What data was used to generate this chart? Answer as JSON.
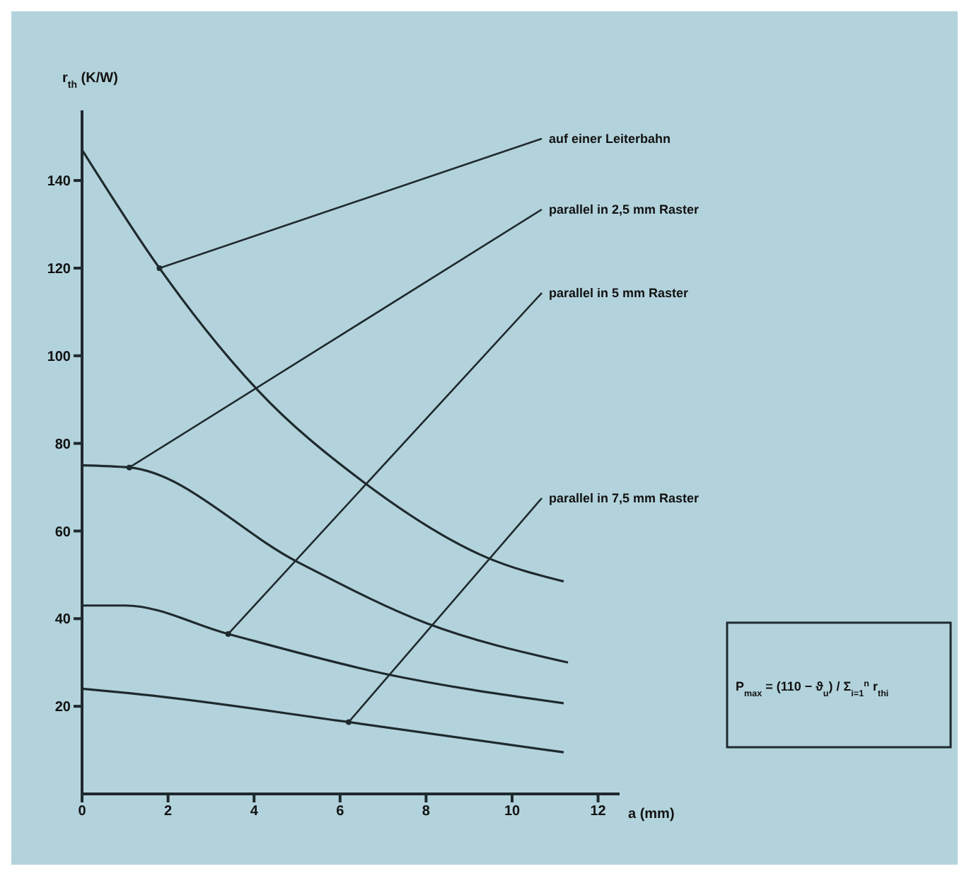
{
  "chart_data": {
    "type": "line",
    "ylabel": "r$_{th}$ (K/W)",
    "xlabel": "a (mm)",
    "xlim": [
      0,
      12.5
    ],
    "xticks": [
      0,
      2,
      4,
      6,
      8,
      10,
      12
    ],
    "ylim": [
      0,
      156
    ],
    "yticks": [
      20,
      40,
      60,
      80,
      100,
      120,
      140
    ],
    "marker": "none",
    "line_style": "solid",
    "series": [
      {
        "color": "#1f2a2e",
        "x": [
          0,
          1.8,
          4.1,
          6.5,
          9.4,
          11.2
        ],
        "values": [
          147,
          120,
          92,
          71.5,
          54,
          48.5
        ]
      },
      {
        "color": "#1f2a2e",
        "x": [
          0,
          1.1,
          5,
          8,
          11.3
        ],
        "values": [
          75,
          74.5,
          53,
          39,
          30
        ]
      },
      {
        "color": "#1f2a2e",
        "x": [
          0,
          1,
          3.4,
          7,
          11.2
        ],
        "values": [
          43,
          43,
          36.5,
          27.5,
          20.7
        ]
      },
      {
        "color": "#1f2a2e",
        "x": [
          0,
          1.1,
          6.2,
          11.2
        ],
        "values": [
          24,
          23,
          16.4,
          9.5
        ]
      }
    ],
    "annotations": [
      {
        "text": "auf einer Leiterbahn",
        "x": 1.8,
        "y": 120
      },
      {
        "text": "parallel in 2,5 mm Raster",
        "x": 1.1,
        "y": 74.5
      },
      {
        "text": "parallel in 5 mm Raster",
        "x": 3.4,
        "y": 36.5
      },
      {
        "text": "parallel in 7,5 mm Raster",
        "x": 6.2,
        "y": 16.4
      },
      "P$_{max}$ = (110 − ϑ$_{u}$) / Σ$_{i=1}$$^{n}$ r$_{thi}$"
    ]
  }
}
